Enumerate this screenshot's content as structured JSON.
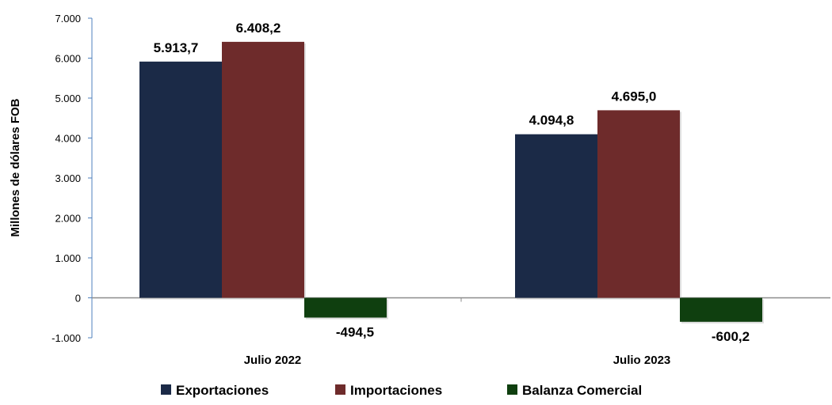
{
  "chart_data": {
    "type": "bar",
    "ylabel": "Millones de dólares FOB",
    "categories": [
      "Julio 2022",
      "Julio 2023"
    ],
    "ylim": [
      -1000,
      7000
    ],
    "yticks": [
      {
        "value": -1000,
        "label": "-1.000"
      },
      {
        "value": 0,
        "label": "0"
      },
      {
        "value": 1000,
        "label": "1.000"
      },
      {
        "value": 2000,
        "label": "2.000"
      },
      {
        "value": 3000,
        "label": "3.000"
      },
      {
        "value": 4000,
        "label": "4.000"
      },
      {
        "value": 5000,
        "label": "5.000"
      },
      {
        "value": 6000,
        "label": "6.000"
      },
      {
        "value": 7000,
        "label": "7.000"
      }
    ],
    "legend_position": "bottom",
    "grid": false,
    "series": [
      {
        "name": "Exportaciones",
        "color": "#1b2a47",
        "values": [
          5913.7,
          4094.8
        ],
        "labels": [
          "5.913,7",
          "4.094,8"
        ]
      },
      {
        "name": "Importaciones",
        "color": "#6e2b2b",
        "values": [
          6408.2,
          4695.0
        ],
        "labels": [
          "6.408,2",
          "4.695,0"
        ]
      },
      {
        "name": "Balanza Comercial",
        "color": "#0f3f0f",
        "values": [
          -494.5,
          -600.2
        ],
        "labels": [
          "-494,5",
          "-600,2"
        ]
      }
    ]
  }
}
